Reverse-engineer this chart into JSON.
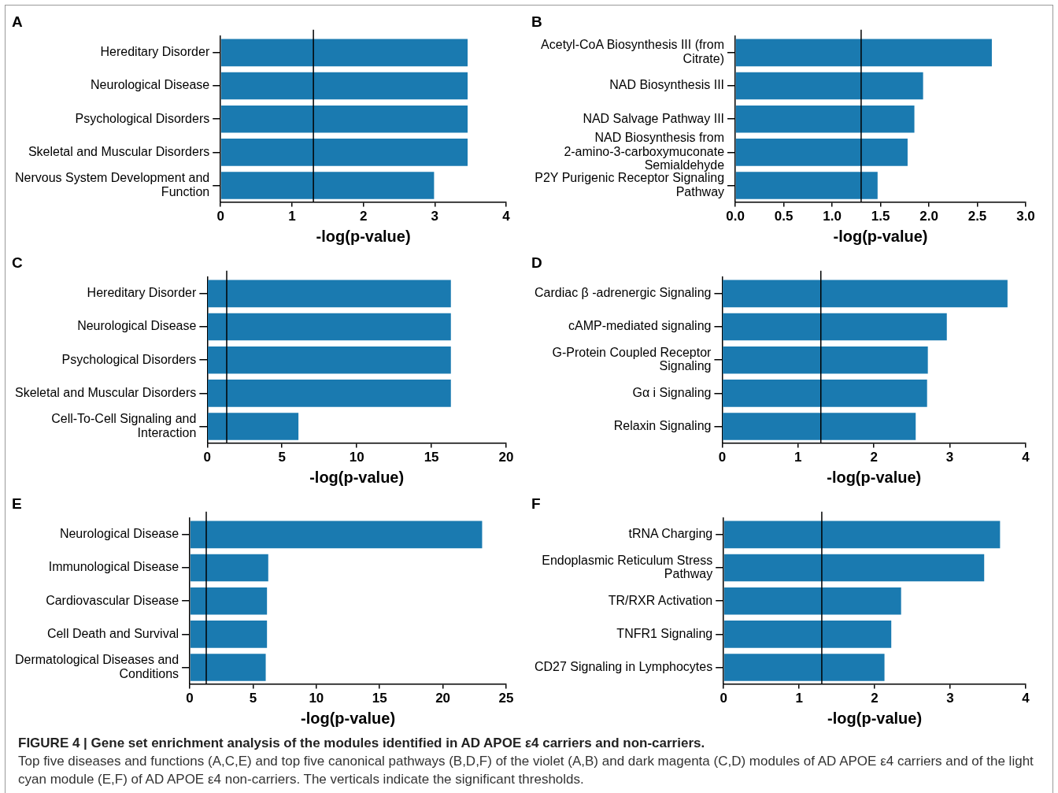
{
  "chart_data": [
    {
      "type": "bar",
      "title": "A",
      "orientation": "horizontal",
      "categories": [
        "Hereditary Disorder",
        "Neurological Disease",
        "Psychological Disorders",
        "Skeletal and Muscular Disorders",
        "Nervous System Development and Function"
      ],
      "values": [
        3.46,
        3.46,
        3.46,
        3.46,
        2.99
      ],
      "color": "#1a7ab0",
      "xlim": [
        0,
        4
      ],
      "xticks": [
        0,
        1,
        2,
        3,
        4
      ],
      "xlabel": "-log(p-value)",
      "ref_lines": [
        {
          "axis": "x",
          "value": 1.3,
          "color": "#000000"
        }
      ],
      "grid": false,
      "legend": false
    },
    {
      "type": "bar",
      "title": "B",
      "orientation": "horizontal",
      "categories": [
        "Acetyl-CoA Biosynthesis III (from Citrate)",
        "NAD Biosynthesis III",
        "NAD Salvage Pathway III",
        "NAD Biosynthesis from 2-amino-3-carboxymuconate Semialdehyde",
        "P2Y Purigenic Receptor Signaling Pathway"
      ],
      "values": [
        2.65,
        1.94,
        1.85,
        1.78,
        1.47
      ],
      "color": "#1a7ab0",
      "xlim": [
        0,
        3
      ],
      "xticks": [
        {
          "value": 0,
          "label": "0.0"
        },
        {
          "value": 0.5,
          "label": "0.5"
        },
        {
          "value": 1,
          "label": "1.0"
        },
        {
          "value": 1.5,
          "label": "1.5"
        },
        {
          "value": 2,
          "label": "2.0"
        },
        {
          "value": 2.5,
          "label": "2.5"
        },
        {
          "value": 3,
          "label": "3.0"
        }
      ],
      "xlabel": "-log(p-value)",
      "ref_lines": [
        {
          "axis": "x",
          "value": 1.3,
          "color": "#000000"
        }
      ],
      "grid": false,
      "legend": false
    },
    {
      "type": "bar",
      "title": "C",
      "orientation": "horizontal",
      "categories": [
        "Hereditary Disorder",
        "Neurological Disease",
        "Psychological Disorders",
        "Skeletal and Muscular Disorders",
        "Cell-To-Cell Signaling and Interaction"
      ],
      "values": [
        16.3,
        16.3,
        16.3,
        16.3,
        6.1
      ],
      "color": "#1a7ab0",
      "xlim": [
        0,
        20
      ],
      "xticks": [
        0,
        5,
        10,
        15,
        20
      ],
      "xlabel": "-log(p-value)",
      "ref_lines": [
        {
          "axis": "x",
          "value": 1.3,
          "color": "#000000"
        }
      ],
      "grid": false,
      "legend": false
    },
    {
      "type": "bar",
      "title": "D",
      "orientation": "horizontal",
      "categories": [
        "Cardiac β -adrenergic Signaling",
        "cAMP-mediated signaling",
        "G-Protein Coupled Receptor Signaling",
        "Gα i Signaling",
        "Relaxin Signaling"
      ],
      "values": [
        3.76,
        2.96,
        2.71,
        2.7,
        2.55
      ],
      "color": "#1a7ab0",
      "xlim": [
        0,
        4
      ],
      "xticks": [
        0,
        1,
        2,
        3,
        4
      ],
      "xlabel": "-log(p-value)",
      "ref_lines": [
        {
          "axis": "x",
          "value": 1.3,
          "color": "#000000"
        }
      ],
      "grid": false,
      "legend": false
    },
    {
      "type": "bar",
      "title": "E",
      "orientation": "horizontal",
      "categories": [
        "Neurological Disease",
        "Immunological Disease",
        "Cardiovascular Disease",
        "Cell Death and Survival",
        "Dermatological Diseases and Conditions"
      ],
      "values": [
        23.1,
        6.2,
        6.1,
        6.1,
        6.0
      ],
      "color": "#1a7ab0",
      "xlim": [
        0,
        25
      ],
      "xticks": [
        0,
        5,
        10,
        15,
        20,
        25
      ],
      "xlabel": "-log(p-value)",
      "ref_lines": [
        {
          "axis": "x",
          "value": 1.3,
          "color": "#000000"
        }
      ],
      "grid": false,
      "legend": false
    },
    {
      "type": "bar",
      "title": "F",
      "orientation": "horizontal",
      "categories": [
        "tRNA Charging",
        "Endoplasmic Reticulum Stress Pathway",
        "TR/RXR Activation",
        "TNFR1 Signaling",
        "CD27 Signaling in Lymphocytes"
      ],
      "values": [
        3.66,
        3.45,
        2.35,
        2.22,
        2.13
      ],
      "color": "#1a7ab0",
      "xlim": [
        0,
        4
      ],
      "xticks": [
        0,
        1,
        2,
        3,
        4
      ],
      "xlabel": "-log(p-value)",
      "ref_lines": [
        {
          "axis": "x",
          "value": 1.3,
          "color": "#000000"
        }
      ],
      "grid": false,
      "legend": false
    },
    {
      "type": "other",
      "title": "FIGURE 4 | Gene set enrichment analysis of the modules identified in AD APOE ε4 carriers and non-carriers.",
      "annotations": [
        "Top five diseases and functions (A,C,E) and top five canonical pathways (B,D,F) of the violet (A,B) and dark magenta (C,D) modules of AD APOE ε4 carriers and of the light cyan module (E,F) of AD APOE ε4 non-carriers. The verticals indicate the significant thresholds."
      ]
    }
  ]
}
